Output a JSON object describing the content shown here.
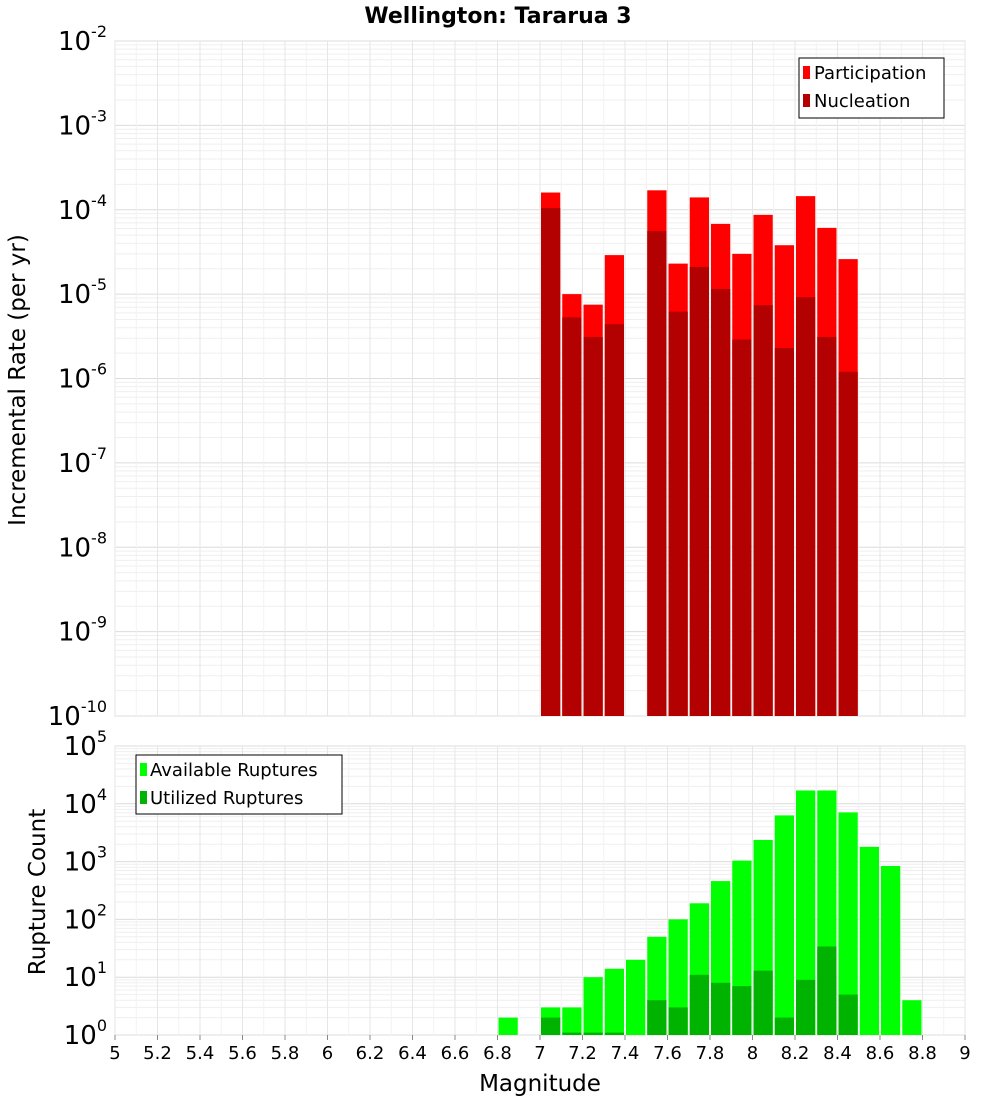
{
  "chart_data": [
    {
      "type": "bar",
      "title": "Wellington: Tararua 3",
      "xlabel": "",
      "ylabel": "Incremental Rate (per yr)",
      "yscale": "log",
      "ylim": [
        1e-10,
        0.01
      ],
      "xlim": [
        5,
        9
      ],
      "grid": true,
      "legend_position": "top-right",
      "series": [
        {
          "name": "Participation",
          "color": "#ff0000",
          "x": [
            7.0,
            7.1,
            7.2,
            7.3,
            7.5,
            7.6,
            7.7,
            7.8,
            7.9,
            8.0,
            8.1,
            8.2,
            8.3,
            8.4
          ],
          "values": [
            0.00016,
            1e-05,
            7.5e-06,
            2.9e-05,
            0.00017,
            2.3e-05,
            0.00014,
            6.8e-05,
            3e-05,
            8.7e-05,
            3.8e-05,
            0.000145,
            6.1e-05,
            2.6e-05
          ]
        },
        {
          "name": "Nucleation",
          "color": "#b30000",
          "x": [
            7.0,
            7.1,
            7.2,
            7.3,
            7.5,
            7.6,
            7.7,
            7.8,
            7.9,
            8.0,
            8.1,
            8.2,
            8.3,
            8.4
          ],
          "values": [
            0.000105,
            5.3e-06,
            3.1e-06,
            4.4e-06,
            5.6e-05,
            6.2e-06,
            2.1e-05,
            1.15e-05,
            2.9e-06,
            7.4e-06,
            2.3e-06,
            9.2e-06,
            3.1e-06,
            1.2e-06
          ]
        }
      ]
    },
    {
      "type": "bar",
      "title": "",
      "xlabel": "Magnitude",
      "ylabel": "Rupture Count",
      "yscale": "log",
      "ylim": [
        1,
        100000
      ],
      "xlim": [
        5,
        9
      ],
      "grid": true,
      "legend_position": "top-left",
      "x_tick_labels": [
        "5",
        "5.2",
        "5.4",
        "5.6",
        "5.8",
        "6",
        "6.2",
        "6.4",
        "6.6",
        "6.8",
        "7",
        "7.2",
        "7.4",
        "7.6",
        "7.8",
        "8",
        "8.2",
        "8.4",
        "8.6",
        "8.8",
        "9"
      ],
      "series": [
        {
          "name": "Available Ruptures",
          "color": "#00ff00",
          "x": [
            6.8,
            7.0,
            7.1,
            7.2,
            7.3,
            7.4,
            7.5,
            7.6,
            7.7,
            7.8,
            7.9,
            8.0,
            8.1,
            8.2,
            8.3,
            8.4,
            8.5,
            8.6,
            8.7
          ],
          "values": [
            2,
            3,
            3,
            10,
            14,
            20,
            50,
            100,
            190,
            460,
            1040,
            2370,
            6300,
            17000,
            17000,
            7100,
            1800,
            840,
            4
          ]
        },
        {
          "name": "Utilized Ruptures",
          "color": "#00b300",
          "x": [
            7.0,
            7.1,
            7.2,
            7.3,
            7.5,
            7.6,
            7.7,
            7.8,
            7.9,
            8.0,
            8.1,
            8.2,
            8.3,
            8.4
          ],
          "values": [
            2,
            1.1,
            1.1,
            1.1,
            4,
            3,
            11,
            8,
            7,
            13,
            2,
            9,
            34,
            5
          ]
        }
      ]
    }
  ]
}
